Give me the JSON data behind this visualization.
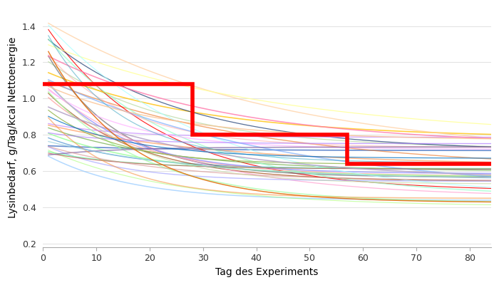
{
  "xlabel": "Tag des Experiments",
  "ylabel": "Lysinbedarf, g/Tag/kcal Nettoenergie",
  "xlim": [
    0,
    84
  ],
  "ylim": [
    0.18,
    1.5
  ],
  "yticks": [
    0.2,
    0.4,
    0.6,
    0.8,
    1.0,
    1.2,
    1.4
  ],
  "xticks": [
    0,
    10,
    20,
    30,
    40,
    50,
    60,
    70,
    80
  ],
  "red_step_x": [
    0,
    28,
    28,
    57,
    57,
    84
  ],
  "red_step_y": [
    1.08,
    1.08,
    0.8,
    0.8,
    0.64,
    0.64
  ],
  "n_pigs": 42,
  "seed": 7,
  "figsize": [
    7.0,
    4.0
  ],
  "dpi": 100,
  "colors": [
    "#4472C4",
    "#ED7D31",
    "#A9D18E",
    "#FF0000",
    "#FFC000",
    "#5B9BD5",
    "#70AD47",
    "#264478",
    "#9E480E",
    "#636363",
    "#FF9999",
    "#99CCFF",
    "#FFCC99",
    "#CC99FF",
    "#99FFCC",
    "#FF99CC",
    "#99FF99",
    "#9999FF",
    "#FFFF99",
    "#FFaaFF",
    "#aaaaFF",
    "#FFaaaa",
    "#aaFFaa",
    "#aaFFFF",
    "#FFaa77",
    "#77FFAA",
    "#AA77FF",
    "#FF77AA",
    "#77AAFF",
    "#AAFF77",
    "#c0504d",
    "#9bbb59",
    "#8064a2",
    "#4bacc6",
    "#f79646",
    "#d99694",
    "#c3d69b",
    "#b3a2c7",
    "#93cddd",
    "#fac08f",
    "#e36c09",
    "#0070c0",
    "#7030a0",
    "#00b050",
    "#ff0000",
    "#92d050",
    "#00b0f0",
    "#7030a0",
    "#ff00ff",
    "#c0c0c0"
  ]
}
